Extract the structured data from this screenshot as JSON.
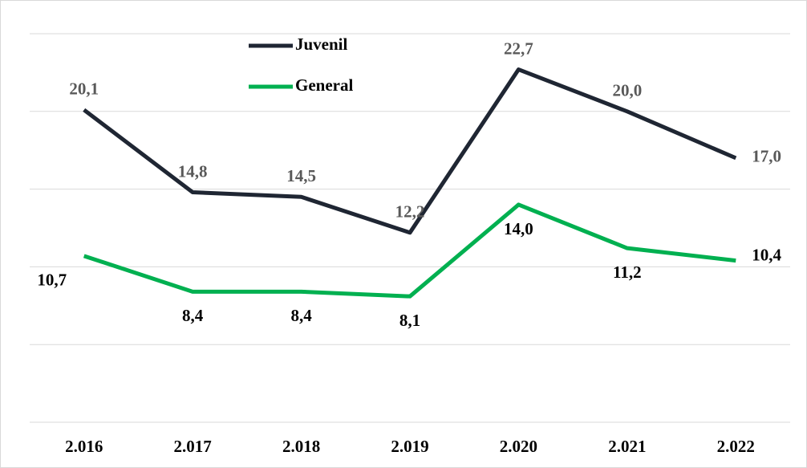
{
  "chart_data": {
    "type": "line",
    "categories": [
      "2.016",
      "2.017",
      "2.018",
      "2.019",
      "2.020",
      "2.021",
      "2.022"
    ],
    "series": [
      {
        "name": "Juvenil",
        "color": "#1f2633",
        "values": [
          20.1,
          14.8,
          14.5,
          12.2,
          22.7,
          20.0,
          17.0
        ],
        "value_labels": [
          "20,1",
          "14,8",
          "14,5",
          "12,2",
          "22,7",
          "20,0",
          "17,0"
        ]
      },
      {
        "name": "General",
        "color": "#00b050",
        "values": [
          10.7,
          8.4,
          8.4,
          8.1,
          14.0,
          11.2,
          10.4
        ],
        "value_labels": [
          "10,7",
          "8,4",
          "8,4",
          "8,1",
          "14,0",
          "11,2",
          "10,4"
        ]
      }
    ],
    "ylim": [
      0,
      25
    ],
    "yticks": [
      0,
      5,
      10,
      15,
      20,
      25
    ],
    "grid": true
  }
}
